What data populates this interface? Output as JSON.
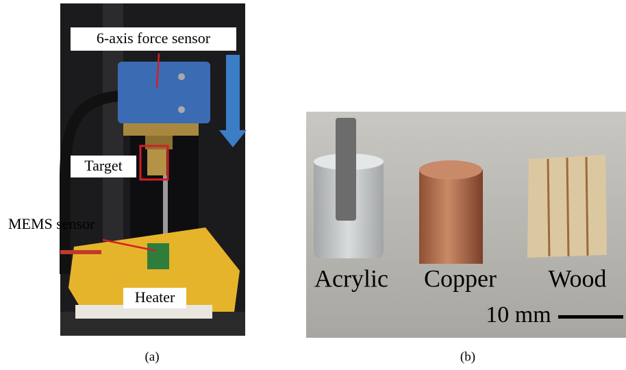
{
  "panel_a": {
    "caption": "(a)",
    "labels": [
      "6-axis force sensor",
      "Target",
      "MEMS sensor",
      "Heater"
    ]
  },
  "panel_b": {
    "caption": "(b)",
    "labels": [
      "Acrylic",
      "Copper",
      "Wood"
    ],
    "scale_bar": "10 mm"
  }
}
